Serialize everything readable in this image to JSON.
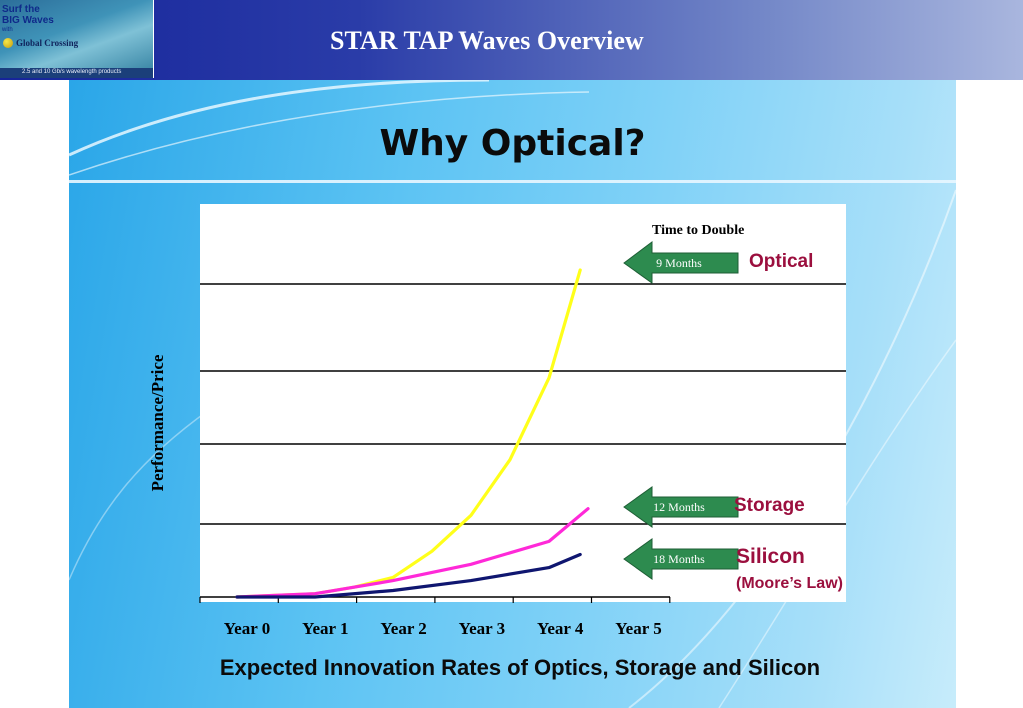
{
  "header": {
    "title": "STAR TAP Waves Overview",
    "logo": {
      "line1": "Surf the",
      "line2": "BIG Waves",
      "line3": "with",
      "brand": "Global Crossing",
      "tagline": "2.5 and 10 Gb/s wavelength products"
    }
  },
  "slide": {
    "title": "Why Optical?",
    "caption": "Expected Innovation Rates of Optics, Storage and Silicon"
  },
  "chart_data": {
    "type": "line",
    "title": "Why Optical?",
    "xlabel": "Expected Innovation Rates of Optics, Storage and Silicon",
    "ylabel": "Performance/Price",
    "categories": [
      "Year 0",
      "Year 1",
      "Year 2",
      "Year 3",
      "Year 4",
      "Year 5"
    ],
    "x": [
      0,
      1,
      2,
      3,
      4,
      5
    ],
    "ylim": [
      0,
      100
    ],
    "grid": true,
    "legend": "right",
    "legend_title": "Time to Double",
    "series": [
      {
        "name": "Optical",
        "doubling": "9 Months",
        "color": "#ffff1a",
        "x": [
          0,
          1,
          1.5,
          2,
          2.5,
          3,
          3.5,
          4,
          4.4
        ],
        "values": [
          0,
          1,
          3,
          6,
          14,
          25,
          42,
          67,
          100
        ]
      },
      {
        "name": "Storage",
        "doubling": "12 Months",
        "color": "#ff29d8",
        "x": [
          0,
          1,
          2,
          3,
          4,
          4.5
        ],
        "values": [
          0,
          1,
          5,
          10,
          17,
          27
        ]
      },
      {
        "name": "Silicon",
        "sub_label": "(Moore’s Law)",
        "doubling": "18 Months",
        "color": "#0f1670",
        "x": [
          0,
          1,
          2,
          3,
          4,
          4.4
        ],
        "values": [
          0,
          0,
          2,
          5,
          9,
          13
        ]
      }
    ]
  }
}
